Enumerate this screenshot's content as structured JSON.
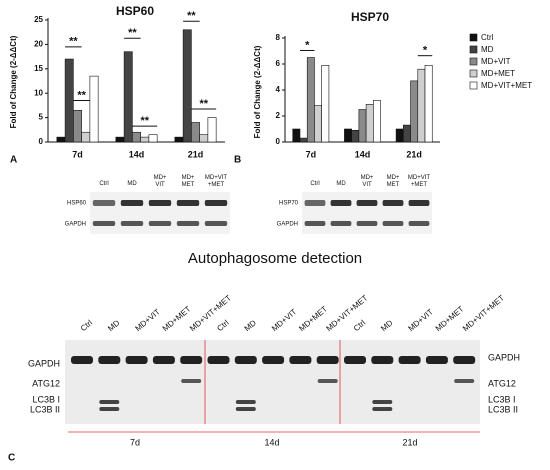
{
  "chart_data": [
    {
      "type": "bar",
      "title": "HSP60",
      "y_label": "Fold of Change (2-ΔΔCt)",
      "categories": [
        "7d",
        "14d",
        "21d"
      ],
      "series": [
        {
          "name": "Ctrl",
          "color": "#111111",
          "values": [
            1,
            1,
            1
          ]
        },
        {
          "name": "MD",
          "color": "#444444",
          "values": [
            17,
            18.5,
            23
          ]
        },
        {
          "name": "MD+VIT",
          "color": "#8a8a8a",
          "values": [
            6.5,
            2,
            4
          ]
        },
        {
          "name": "MD+MET",
          "color": "#cfcfcf",
          "values": [
            2,
            1,
            1.5
          ]
        },
        {
          "name": "MD+VIT+MET",
          "color": "#ffffff",
          "values": [
            13.5,
            1.5,
            5
          ]
        }
      ],
      "ylim": [
        0,
        25
      ],
      "yticks": [
        0,
        5,
        10,
        15,
        20,
        25
      ],
      "annotations": [
        "**",
        "**",
        "**",
        "**",
        "**",
        "**"
      ]
    },
    {
      "type": "bar",
      "title": "HSP70",
      "y_label": "Fold of Change (2-ΔΔCt)",
      "categories": [
        "7d",
        "14d",
        "21d"
      ],
      "series": [
        {
          "name": "Ctrl",
          "color": "#111111",
          "values": [
            1,
            1,
            1
          ]
        },
        {
          "name": "MD",
          "color": "#444444",
          "values": [
            0.3,
            0.9,
            1.3
          ]
        },
        {
          "name": "MD+VIT",
          "color": "#8a8a8a",
          "values": [
            6.5,
            2.5,
            4.7
          ]
        },
        {
          "name": "MD+MET",
          "color": "#cfcfcf",
          "values": [
            2.8,
            2.9,
            5.6
          ]
        },
        {
          "name": "MD+VIT+MET",
          "color": "#ffffff",
          "values": [
            5.9,
            3.2,
            5.9
          ]
        }
      ],
      "ylim": [
        0,
        8
      ],
      "yticks": [
        0,
        2,
        4,
        6,
        8
      ],
      "annotations": [
        "*",
        "*"
      ]
    }
  ],
  "panel_labels": [
    "A",
    "B",
    "C"
  ],
  "blot_a": {
    "lanes": [
      "Ctrl",
      "MD",
      "MD+ VIT",
      "MD+ MET",
      "MD+VIT +MET"
    ],
    "rows": [
      "HSP60",
      "GAPDH"
    ]
  },
  "blot_b": {
    "lanes": [
      "Ctrl",
      "MD",
      "MD+ VIT",
      "MD+ MET",
      "MD+VIT +MET"
    ],
    "rows": [
      "HSP70",
      "GAPDH"
    ]
  },
  "autophagy": {
    "title": "Autophagosome detection",
    "lanes": [
      "Ctrl",
      "MD",
      "MD+VIT",
      "MD+MET",
      "MD+VIT+MET",
      "Ctrl",
      "MD",
      "MD+VIT",
      "MD+MET",
      "MD+VIT+MET",
      "Ctrl",
      "MD",
      "MD+VIT",
      "MD+MET",
      "MD+VIT+MET"
    ],
    "left_labels": [
      "GAPDH",
      "ATG12",
      "LC3B I",
      "LC3B II"
    ],
    "right_labels": [
      "GAPDH",
      "ATG12",
      "LC3B I",
      "LC3B II"
    ],
    "times": [
      "7d",
      "14d",
      "21d"
    ]
  }
}
